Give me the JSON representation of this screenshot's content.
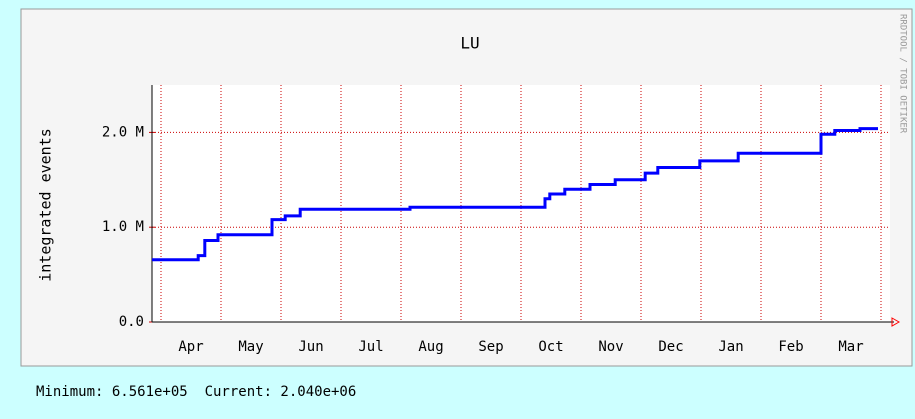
{
  "chart_data": {
    "type": "line",
    "title": "LU",
    "y_label": "integrated events",
    "side_label": "RRDTOOL / TOBI OETIKER",
    "footer": "Minimum: 6.561e+05  Current: 2.040e+06",
    "categories": [
      "Apr",
      "May",
      "Jun",
      "Jul",
      "Aug",
      "Sep",
      "Oct",
      "Nov",
      "Dec",
      "Jan",
      "Feb",
      "Mar"
    ],
    "xlim": [
      -0.15,
      12.15
    ],
    "xticks": [
      0,
      1,
      2,
      3,
      4,
      5,
      6,
      7,
      8,
      9,
      10,
      11,
      12
    ],
    "ylim": [
      0,
      2500000
    ],
    "yticks": [
      {
        "value": 0,
        "label": "0.0"
      },
      {
        "value": 1000000,
        "label": "1.0 M"
      },
      {
        "value": 2000000,
        "label": "2.0 M"
      }
    ],
    "grid": true,
    "series": [
      {
        "color": "#0000ff",
        "x": [
          -0.15,
          0.62,
          0.62,
          0.73,
          0.73,
          0.95,
          0.95,
          1.85,
          1.85,
          2.07,
          2.07,
          2.32,
          2.32,
          4.15,
          4.15,
          6.4,
          6.4,
          6.48,
          6.48,
          6.73,
          6.73,
          7.15,
          7.15,
          7.57,
          7.57,
          8.07,
          8.07,
          8.28,
          8.28,
          8.98,
          8.98,
          9.62,
          9.62,
          11.0,
          11.0,
          11.23,
          11.23,
          11.65,
          11.65,
          11.95
        ],
        "values": [
          656100,
          656100,
          700000,
          700000,
          860000,
          860000,
          920000,
          920000,
          1080000,
          1080000,
          1120000,
          1120000,
          1190000,
          1190000,
          1210000,
          1210000,
          1300000,
          1300000,
          1350000,
          1350000,
          1400000,
          1400000,
          1450000,
          1450000,
          1500000,
          1500000,
          1570000,
          1570000,
          1630000,
          1630000,
          1700000,
          1700000,
          1780000,
          1780000,
          1980000,
          1980000,
          2020000,
          2020000,
          2040000,
          2040000
        ]
      }
    ]
  }
}
